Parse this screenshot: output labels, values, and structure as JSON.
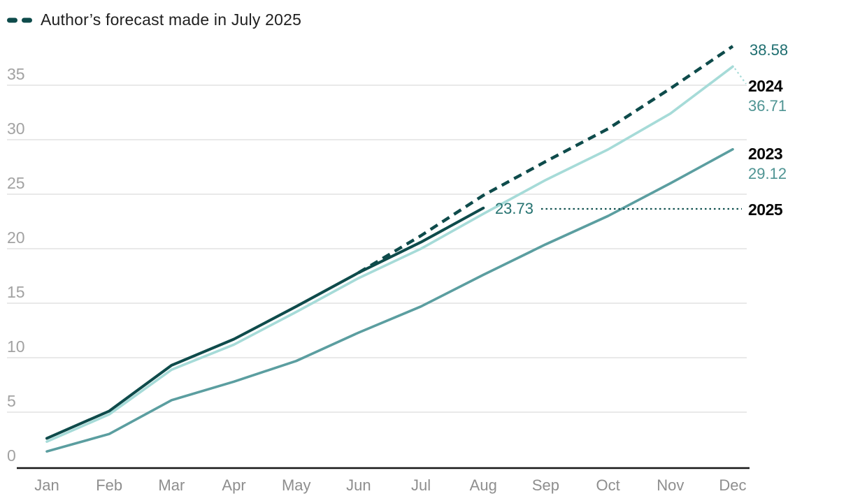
{
  "legend": {
    "label": "Author’s forecast made in July 2025"
  },
  "colors": {
    "dark_teal": "#0E4B4B",
    "light_teal": "#A6DBD8",
    "medium_teal": "#5B9EA0",
    "value_dark": "#1E6E70",
    "value_light": "#4F9493",
    "value_mid": "#257270",
    "year_label": "#060606",
    "axis": "#161616",
    "grid": "#E9E9E9",
    "tick_y": "#A2A2A2",
    "tick_x": "#8E8E8E",
    "leader_dark": "#10514F",
    "connector_light": "#A6DBD8"
  },
  "chart_data": {
    "type": "line",
    "title": "",
    "xlabel": "",
    "ylabel": "",
    "x_categories": [
      "Jan",
      "Feb",
      "Mar",
      "Apr",
      "May",
      "Jun",
      "Jul",
      "Aug",
      "Sep",
      "Oct",
      "Nov",
      "Dec"
    ],
    "y_ticks": [
      0,
      5,
      10,
      15,
      20,
      25,
      30,
      35
    ],
    "ylim": [
      0,
      39
    ],
    "grid": "horizontal",
    "legend_position": "top-left",
    "series": [
      {
        "name": "2023",
        "style": "solid",
        "color": "#5B9EA0",
        "values": [
          1.4,
          3.0,
          6.1,
          7.8,
          9.7,
          12.3,
          14.7,
          17.6,
          20.4,
          23.0,
          26.0,
          29.12
        ]
      },
      {
        "name": "2024",
        "style": "solid",
        "color": "#A6DBD8",
        "values": [
          2.3,
          4.8,
          8.9,
          11.2,
          14.2,
          17.3,
          20.0,
          23.2,
          26.3,
          29.1,
          32.4,
          36.71
        ]
      },
      {
        "name": "2025-actual",
        "style": "solid",
        "color": "#0E4B4B",
        "values": [
          2.6,
          5.1,
          9.3,
          11.7,
          14.7,
          17.8,
          20.6,
          23.73,
          null,
          null,
          null,
          null
        ]
      },
      {
        "name": "2025-forecast",
        "style": "dashed",
        "color": "#0E4B4B",
        "values": [
          null,
          null,
          null,
          null,
          null,
          17.8,
          21.2,
          24.9,
          28.0,
          31.0,
          34.7,
          38.58
        ]
      }
    ],
    "annotations": {
      "forecast_end_value": "38.58",
      "year_2024": "2024",
      "value_2024": "36.71",
      "year_2023": "2023",
      "value_2023": "29.12",
      "year_2025": "2025",
      "actual_end_value": "23.73"
    }
  }
}
